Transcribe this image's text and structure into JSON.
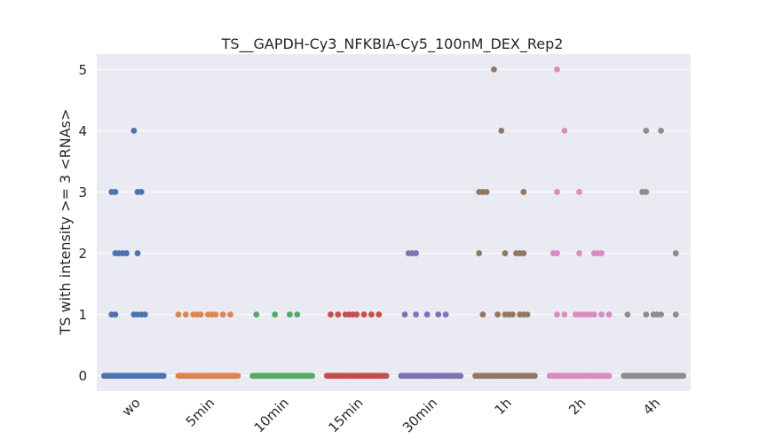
{
  "chart_data": {
    "type": "scatter",
    "subtype": "strip",
    "title": "TS__GAPDH-Cy3_NFKBIA-Cy5_100nM_DEX_Rep2",
    "xlabel": "",
    "ylabel": "TS with intensity >= 3 <RNAs>",
    "categories": [
      "wo",
      "5min",
      "10min",
      "15min",
      "30min",
      "1h",
      "2h",
      "4h"
    ],
    "ylim": [
      -0.25,
      5.25
    ],
    "yticks": [
      "0",
      "1",
      "2",
      "3",
      "4",
      "5"
    ],
    "grid": true,
    "background": "#EAEAF2",
    "colors": [
      "#4C72B0",
      "#DD8452",
      "#55A868",
      "#C44E52",
      "#8172B3",
      "#937860",
      "#DA8BC3",
      "#8C8C8C"
    ],
    "series": [
      {
        "category": "wo",
        "points": [
          {
            "y": 0,
            "offsets": [
              -0.4,
              0.4
            ]
          },
          {
            "y": 1,
            "offsets": [
              -0.3,
              -0.25,
              0.0,
              0.05,
              0.1,
              0.15
            ]
          },
          {
            "y": 2,
            "offsets": [
              -0.25,
              -0.2,
              -0.15,
              -0.1,
              0.05
            ]
          },
          {
            "y": 3,
            "offsets": [
              -0.3,
              -0.25,
              0.05,
              0.1
            ]
          },
          {
            "y": 4,
            "offsets": [
              0.0
            ]
          }
        ]
      },
      {
        "category": "5min",
        "points": [
          {
            "y": 0,
            "offsets": [
              -0.4,
              0.4
            ]
          },
          {
            "y": 1,
            "offsets": [
              -0.4,
              -0.3,
              -0.2,
              -0.15,
              -0.1,
              0.0,
              0.05,
              0.1,
              0.2,
              0.3
            ]
          }
        ]
      },
      {
        "category": "10min",
        "points": [
          {
            "y": 0,
            "offsets": [
              -0.4,
              0.4
            ]
          },
          {
            "y": 1,
            "offsets": [
              -0.35,
              -0.1,
              0.1,
              0.2
            ]
          }
        ]
      },
      {
        "category": "15min",
        "points": [
          {
            "y": 0,
            "offsets": [
              -0.4,
              0.4
            ]
          },
          {
            "y": 1,
            "offsets": [
              -0.35,
              -0.25,
              -0.15,
              -0.1,
              -0.05,
              0.0,
              0.1,
              0.2,
              0.3
            ]
          }
        ]
      },
      {
        "category": "30min",
        "points": [
          {
            "y": 0,
            "offsets": [
              -0.4,
              0.4
            ]
          },
          {
            "y": 1,
            "offsets": [
              -0.35,
              -0.2,
              -0.05,
              0.1,
              0.2
            ]
          },
          {
            "y": 2,
            "offsets": [
              -0.3,
              -0.25,
              -0.2
            ]
          }
        ]
      },
      {
        "category": "1h",
        "points": [
          {
            "y": 0,
            "offsets": [
              -0.4,
              0.4
            ]
          },
          {
            "y": 1,
            "offsets": [
              -0.3,
              -0.1,
              0.0,
              0.05,
              0.1,
              0.2,
              0.25,
              0.3
            ]
          },
          {
            "y": 2,
            "offsets": [
              -0.35,
              0.0,
              0.15,
              0.2,
              0.25
            ]
          },
          {
            "y": 3,
            "offsets": [
              -0.35,
              -0.3,
              -0.25,
              0.25
            ]
          },
          {
            "y": 4,
            "offsets": [
              -0.05
            ]
          },
          {
            "y": 5,
            "offsets": [
              -0.15
            ]
          }
        ]
      },
      {
        "category": "2h",
        "points": [
          {
            "y": 0,
            "offsets": [
              -0.4,
              0.4
            ]
          },
          {
            "y": 1,
            "offsets": [
              -0.3,
              -0.2,
              -0.05,
              0.0,
              0.05,
              0.1,
              0.15,
              0.2,
              0.3,
              0.4
            ]
          },
          {
            "y": 2,
            "offsets": [
              -0.35,
              -0.3,
              0.0,
              0.2,
              0.25,
              0.3
            ]
          },
          {
            "y": 3,
            "offsets": [
              -0.3,
              0.0
            ]
          },
          {
            "y": 4,
            "offsets": [
              -0.2
            ]
          },
          {
            "y": 5,
            "offsets": [
              -0.3
            ]
          }
        ]
      },
      {
        "category": "4h",
        "points": [
          {
            "y": 0,
            "offsets": [
              -0.4,
              0.4
            ]
          },
          {
            "y": 1,
            "offsets": [
              -0.35,
              -0.1,
              0.0,
              0.05,
              0.1,
              0.3
            ]
          },
          {
            "y": 2,
            "offsets": [
              0.3
            ]
          },
          {
            "y": 3,
            "offsets": [
              -0.15,
              -0.1
            ]
          },
          {
            "y": 4,
            "offsets": [
              -0.1,
              0.1
            ]
          }
        ]
      }
    ]
  }
}
